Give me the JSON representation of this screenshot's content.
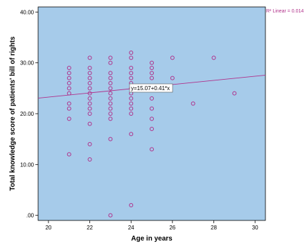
{
  "chart_data": {
    "type": "scatter",
    "xlabel": "Age in years",
    "ylabel": "Total knowledge score of patients' bill of rights",
    "xlim": [
      19.5,
      30.5
    ],
    "ylim": [
      -1,
      41
    ],
    "xticks": [
      "20",
      "22",
      "24",
      "26",
      "28",
      "30"
    ],
    "yticks": [
      ".00",
      "10.00",
      "20.00",
      "30.00",
      "40.00"
    ],
    "grid": false,
    "colors": {
      "background": "#a6cbea",
      "marker": "#b0308a",
      "fit_line": "#b0308a"
    },
    "fit": {
      "intercept": 15.07,
      "slope": 0.41,
      "equation_label": "y=15.07+0.41*x",
      "r2_label": "R² Linear = 0.014"
    },
    "points": [
      [
        21,
        29
      ],
      [
        21,
        28
      ],
      [
        21,
        27
      ],
      [
        21,
        26
      ],
      [
        21,
        25
      ],
      [
        21,
        24
      ],
      [
        21,
        22
      ],
      [
        21,
        21
      ],
      [
        21,
        19
      ],
      [
        21,
        12
      ],
      [
        22,
        31
      ],
      [
        22,
        29
      ],
      [
        22,
        28
      ],
      [
        22,
        27
      ],
      [
        22,
        26
      ],
      [
        22,
        25
      ],
      [
        22,
        24
      ],
      [
        22,
        23
      ],
      [
        22,
        22
      ],
      [
        22,
        21
      ],
      [
        22,
        20
      ],
      [
        22,
        18
      ],
      [
        22,
        14
      ],
      [
        22,
        11
      ],
      [
        23,
        31
      ],
      [
        23,
        30
      ],
      [
        23,
        28
      ],
      [
        23,
        27
      ],
      [
        23,
        26
      ],
      [
        23,
        25
      ],
      [
        23,
        24
      ],
      [
        23,
        23
      ],
      [
        23,
        22
      ],
      [
        23,
        21
      ],
      [
        23,
        20
      ],
      [
        23,
        19
      ],
      [
        23,
        15
      ],
      [
        23,
        0
      ],
      [
        24,
        32
      ],
      [
        24,
        31
      ],
      [
        24,
        29
      ],
      [
        24,
        28
      ],
      [
        24,
        27
      ],
      [
        24,
        26
      ],
      [
        24,
        25
      ],
      [
        24,
        24
      ],
      [
        24,
        23
      ],
      [
        24,
        22
      ],
      [
        24,
        21
      ],
      [
        24,
        20
      ],
      [
        24,
        16
      ],
      [
        24,
        2
      ],
      [
        25,
        30
      ],
      [
        25,
        29
      ],
      [
        25,
        28
      ],
      [
        25,
        27
      ],
      [
        25,
        25
      ],
      [
        25,
        23
      ],
      [
        25,
        21
      ],
      [
        25,
        19
      ],
      [
        25,
        17
      ],
      [
        25,
        13
      ],
      [
        26,
        31
      ],
      [
        26,
        27
      ],
      [
        27,
        22
      ],
      [
        28,
        31
      ],
      [
        29,
        24
      ]
    ]
  }
}
